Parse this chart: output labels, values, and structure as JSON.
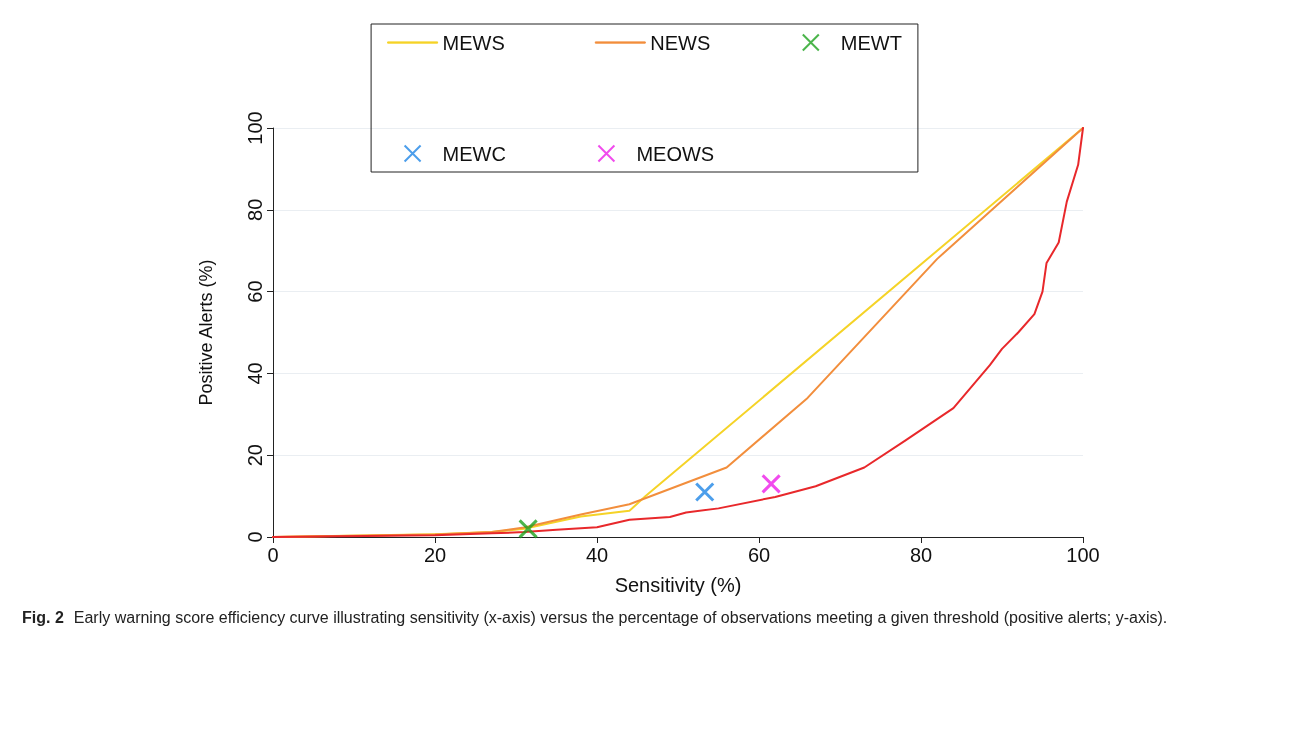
{
  "chart_data": {
    "type": "line",
    "title": "Fig. 2",
    "annotations": [
      "Early warning score efficiency curve illustrating sensitivity (x-axis) versus the percentage of observations meeting a given threshold (positive alerts; y-axis)."
    ],
    "xlabel": "Sensitivity (%)",
    "ylabel": "Positive Alerts (%)",
    "xlim": [
      0,
      100
    ],
    "xticks": [
      0,
      20,
      40,
      60,
      80,
      100
    ],
    "ylim": [
      0,
      100
    ],
    "yticks": [
      0,
      20,
      40,
      60,
      80,
      100
    ],
    "grid": "y",
    "legend": "top",
    "marker": "none",
    "line_style": "solid",
    "series": [
      {
        "name": "MEWS",
        "color": "#f5d327",
        "x": [
          0,
          20,
          27,
          31,
          38,
          44,
          46,
          100
        ],
        "values": [
          0,
          0.7,
          1.2,
          2,
          5,
          6.4,
          10,
          100
        ]
      },
      {
        "name": "NEWS",
        "color": "#f28e3c",
        "x": [
          0,
          20,
          27,
          31,
          38,
          44,
          56,
          66,
          82,
          100
        ],
        "values": [
          0,
          0.6,
          1.2,
          2.3,
          5.5,
          8,
          17,
          34,
          68,
          100
        ]
      },
      {
        "color": "#e8282b",
        "x": [
          0,
          20,
          27,
          31,
          35,
          40,
          44,
          49,
          51,
          55,
          62,
          67,
          73,
          78,
          84,
          88.5,
          90,
          92,
          94,
          95,
          95.5,
          97,
          98,
          99.4,
          100
        ],
        "values": [
          0,
          0.4,
          0.9,
          1.2,
          1.8,
          2.4,
          4.2,
          4.9,
          6,
          7,
          9.8,
          12.4,
          17,
          23.5,
          31.5,
          42,
          46,
          50,
          54.5,
          60,
          67,
          72,
          82,
          91,
          100
        ]
      },
      {
        "name": "MEWT",
        "type": "scatter",
        "marker": "cross",
        "color": "#1ea31e",
        "x": [
          31.5
        ],
        "values": [
          2
        ]
      },
      {
        "name": "MEWC",
        "type": "scatter",
        "marker": "cross",
        "color": "#1f86e6",
        "x": [
          53.3
        ],
        "values": [
          11
        ]
      },
      {
        "name": "MEOWS",
        "type": "scatter",
        "marker": "cross",
        "color": "#ee1ee8",
        "x": [
          61.5
        ],
        "values": [
          13
        ]
      }
    ]
  }
}
